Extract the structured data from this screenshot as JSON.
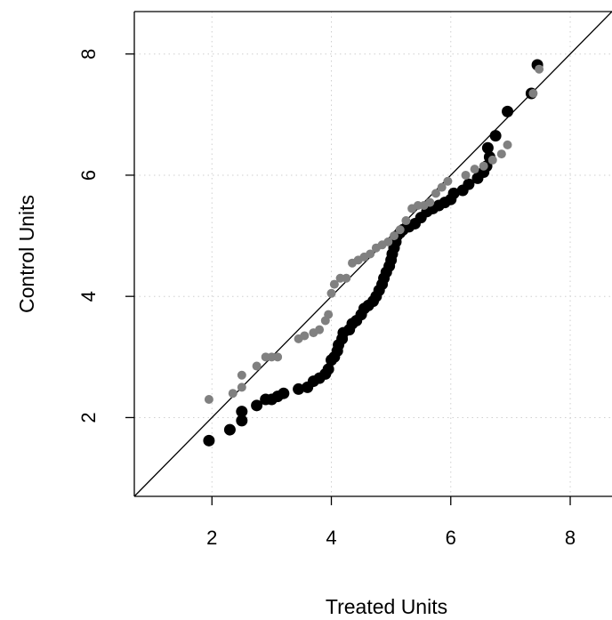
{
  "chart_data": {
    "type": "scatter",
    "title": "",
    "xlabel": "Treated Units",
    "ylabel": "Control Units",
    "xlim": [
      0.7,
      8.7
    ],
    "ylim": [
      0.7,
      8.7
    ],
    "x_ticks": [
      2,
      4,
      6,
      8
    ],
    "y_ticks": [
      2,
      4,
      6,
      8
    ],
    "x_tick_labels": [
      "2",
      "4",
      "6",
      "8"
    ],
    "y_tick_labels": [
      "2",
      "4",
      "6",
      "8"
    ],
    "grid": true,
    "reference_line": "y = x",
    "legend": "none",
    "series": [
      {
        "color": "#000000",
        "marker_size": "large",
        "points": [
          [
            1.95,
            1.62
          ],
          [
            2.3,
            1.8
          ],
          [
            2.5,
            1.95
          ],
          [
            2.5,
            2.1
          ],
          [
            2.75,
            2.2
          ],
          [
            2.9,
            2.3
          ],
          [
            3.0,
            2.3
          ],
          [
            3.1,
            2.35
          ],
          [
            3.2,
            2.4
          ],
          [
            3.45,
            2.47
          ],
          [
            3.6,
            2.5
          ],
          [
            3.7,
            2.6
          ],
          [
            3.8,
            2.65
          ],
          [
            3.9,
            2.72
          ],
          [
            3.95,
            2.8
          ],
          [
            4.0,
            2.95
          ],
          [
            4.05,
            3.0
          ],
          [
            4.1,
            3.1
          ],
          [
            4.12,
            3.2
          ],
          [
            4.18,
            3.3
          ],
          [
            4.2,
            3.4
          ],
          [
            4.3,
            3.45
          ],
          [
            4.35,
            3.55
          ],
          [
            4.42,
            3.6
          ],
          [
            4.5,
            3.7
          ],
          [
            4.55,
            3.8
          ],
          [
            4.62,
            3.85
          ],
          [
            4.7,
            3.92
          ],
          [
            4.75,
            4.0
          ],
          [
            4.8,
            4.1
          ],
          [
            4.85,
            4.2
          ],
          [
            4.88,
            4.3
          ],
          [
            4.92,
            4.4
          ],
          [
            4.97,
            4.5
          ],
          [
            5.0,
            4.6
          ],
          [
            5.02,
            4.7
          ],
          [
            5.05,
            4.8
          ],
          [
            5.08,
            4.9
          ],
          [
            5.1,
            5.0
          ],
          [
            5.15,
            5.05
          ],
          [
            5.2,
            5.1
          ],
          [
            5.3,
            5.15
          ],
          [
            5.4,
            5.2
          ],
          [
            5.5,
            5.3
          ],
          [
            5.6,
            5.4
          ],
          [
            5.7,
            5.45
          ],
          [
            5.8,
            5.5
          ],
          [
            5.9,
            5.55
          ],
          [
            6.0,
            5.6
          ],
          [
            6.05,
            5.7
          ],
          [
            6.2,
            5.75
          ],
          [
            6.3,
            5.85
          ],
          [
            6.45,
            5.95
          ],
          [
            6.55,
            6.05
          ],
          [
            6.6,
            6.15
          ],
          [
            6.65,
            6.3
          ],
          [
            6.62,
            6.45
          ],
          [
            6.75,
            6.65
          ],
          [
            6.95,
            7.05
          ],
          [
            7.35,
            7.35
          ],
          [
            7.45,
            7.82
          ]
        ]
      },
      {
        "color": "#808080",
        "marker_size": "small",
        "points": [
          [
            1.95,
            2.3
          ],
          [
            2.35,
            2.4
          ],
          [
            2.5,
            2.5
          ],
          [
            2.5,
            2.7
          ],
          [
            2.75,
            2.85
          ],
          [
            2.9,
            3.0
          ],
          [
            3.0,
            3.0
          ],
          [
            3.1,
            3.0
          ],
          [
            3.45,
            3.3
          ],
          [
            3.55,
            3.35
          ],
          [
            3.7,
            3.4
          ],
          [
            3.8,
            3.45
          ],
          [
            3.9,
            3.6
          ],
          [
            3.95,
            3.7
          ],
          [
            4.0,
            4.05
          ],
          [
            4.05,
            4.2
          ],
          [
            4.15,
            4.3
          ],
          [
            4.25,
            4.3
          ],
          [
            4.35,
            4.55
          ],
          [
            4.45,
            4.6
          ],
          [
            4.55,
            4.65
          ],
          [
            4.65,
            4.7
          ],
          [
            4.75,
            4.8
          ],
          [
            4.85,
            4.85
          ],
          [
            4.95,
            4.9
          ],
          [
            5.05,
            5.0
          ],
          [
            5.15,
            5.1
          ],
          [
            5.25,
            5.25
          ],
          [
            5.35,
            5.45
          ],
          [
            5.45,
            5.5
          ],
          [
            5.55,
            5.5
          ],
          [
            5.65,
            5.55
          ],
          [
            5.75,
            5.7
          ],
          [
            5.85,
            5.8
          ],
          [
            5.95,
            5.9
          ],
          [
            6.25,
            6.0
          ],
          [
            6.4,
            6.1
          ],
          [
            6.55,
            6.15
          ],
          [
            6.7,
            6.25
          ],
          [
            6.85,
            6.35
          ],
          [
            6.95,
            6.5
          ],
          [
            7.38,
            7.35
          ],
          [
            7.48,
            7.75
          ]
        ]
      }
    ]
  }
}
